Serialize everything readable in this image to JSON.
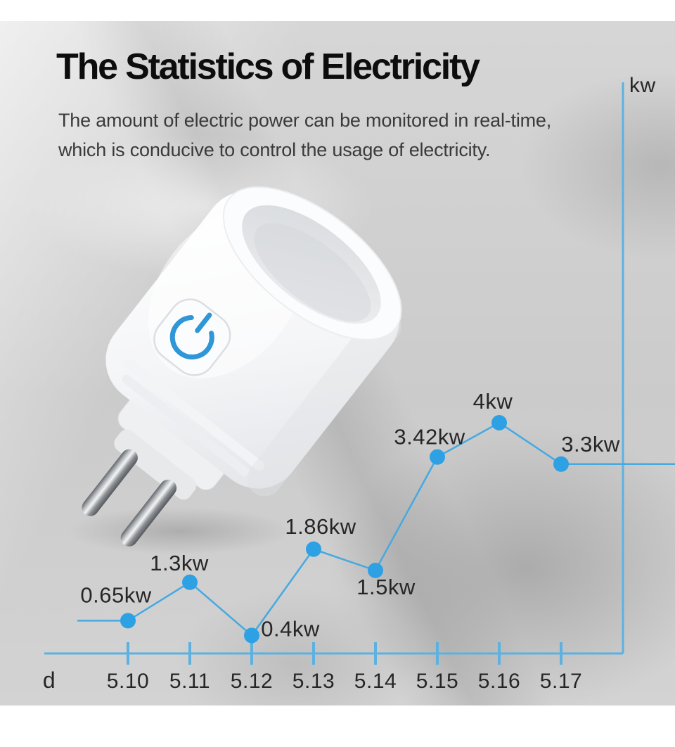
{
  "page": {
    "title": "The Statistics of Electricity",
    "subtitle_line1": "The amount of electric power can be monitored in real-time,",
    "subtitle_line2": "which is conducive to control the usage of electricity."
  },
  "colors": {
    "chart_line": "#45a9e2",
    "chart_dot": "#2da1e4",
    "chart_axis": "#5cb1e0",
    "chart_text": "#262626",
    "title_text": "#0d0d0d",
    "subtitle_text": "#3a3a3a",
    "power_icon_blue": "#2f96d8"
  },
  "icons": {
    "power_icon": "power-symbol"
  },
  "chart_data": {
    "type": "line",
    "title": "",
    "categories": [
      "5.10",
      "5.11",
      "5.12",
      "5.13",
      "5.14",
      "5.15",
      "5.16",
      "5.17"
    ],
    "values": [
      0.65,
      1.3,
      0.4,
      1.86,
      1.5,
      3.42,
      4,
      3.3
    ],
    "point_labels": [
      "0.65kw",
      "1.3kw",
      "0.4kw",
      "1.86kw",
      "1.5kw",
      "3.42kw",
      "4kw",
      "3.3kw"
    ],
    "xlabel": "d",
    "ylabel": "kw",
    "ylim": [
      0,
      4.6
    ],
    "grid": false,
    "legend": null,
    "y_axis_side": "right",
    "markers": "filled-circle"
  }
}
